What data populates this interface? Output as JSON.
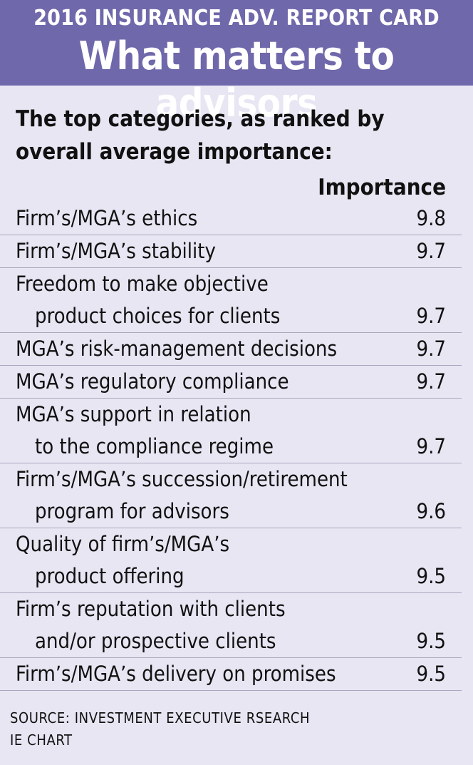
{
  "header": {
    "kicker": "2016 INSURANCE ADV. REPORT CARD",
    "title": "What matters to advisors"
  },
  "intro": "The top categories, as ranked by overall average importance:",
  "chart_data": {
    "type": "table",
    "columns": [
      "",
      "Importance"
    ],
    "rows": [
      {
        "label": [
          "Firm’s/MGA’s ethics"
        ],
        "value": "9.8"
      },
      {
        "label": [
          "Firm’s/MGA’s stability"
        ],
        "value": "9.7"
      },
      {
        "label": [
          "Freedom to make objective",
          "product choices for clients"
        ],
        "value": "9.7"
      },
      {
        "label": [
          "MGA’s risk-management decisions"
        ],
        "value": "9.7"
      },
      {
        "label": [
          "MGA’s regulatory compliance"
        ],
        "value": "9.7"
      },
      {
        "label": [
          "MGA’s support in relation",
          "to the compliance regime"
        ],
        "value": "9.7"
      },
      {
        "label": [
          "Firm’s/MGA’s succession/retirement",
          "program for advisors"
        ],
        "value": "9.6"
      },
      {
        "label": [
          "Quality of firm’s/MGA’s",
          "product offering"
        ],
        "value": "9.5"
      },
      {
        "label": [
          "Firm’s reputation with clients",
          "and/or prospective clients"
        ],
        "value": "9.5"
      },
      {
        "label": [
          "Firm’s/MGA’s delivery on promises"
        ],
        "value": "9.5"
      }
    ]
  },
  "source": {
    "line1": "SOURCE: INVESTMENT EXECUTIVE RSEARCH",
    "line2": "IE CHART"
  }
}
